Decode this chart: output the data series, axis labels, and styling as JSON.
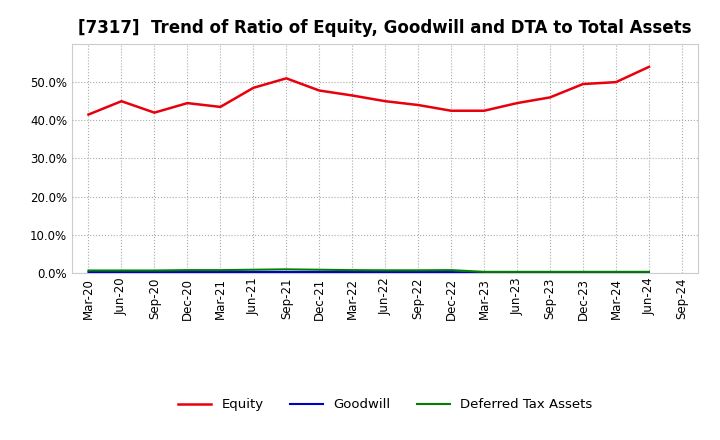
{
  "title": "[7317]  Trend of Ratio of Equity, Goodwill and DTA to Total Assets",
  "x_labels": [
    "Mar-20",
    "Jun-20",
    "Sep-20",
    "Dec-20",
    "Mar-21",
    "Jun-21",
    "Sep-21",
    "Dec-21",
    "Mar-22",
    "Jun-22",
    "Sep-22",
    "Dec-22",
    "Mar-23",
    "Jun-23",
    "Sep-23",
    "Dec-23",
    "Mar-24",
    "Jun-24",
    "Sep-24"
  ],
  "equity": [
    41.5,
    45.0,
    42.0,
    44.5,
    43.5,
    48.5,
    51.0,
    47.8,
    46.5,
    45.0,
    44.0,
    42.5,
    42.5,
    44.5,
    46.0,
    49.5,
    50.0,
    54.0,
    null
  ],
  "goodwill": [
    0.2,
    0.2,
    0.2,
    0.2,
    0.2,
    0.2,
    0.2,
    0.2,
    0.2,
    0.2,
    0.2,
    0.2,
    0.05,
    0.05,
    0.05,
    0.05,
    0.05,
    0.05,
    null
  ],
  "dta": [
    0.6,
    0.6,
    0.6,
    0.7,
    0.7,
    0.8,
    0.9,
    0.8,
    0.7,
    0.65,
    0.65,
    0.7,
    0.25,
    0.25,
    0.25,
    0.25,
    0.25,
    0.25,
    null
  ],
  "equity_color": "#e8000d",
  "goodwill_color": "#0000cc",
  "dta_color": "#008000",
  "ylim": [
    0,
    60
  ],
  "yticks": [
    0,
    10,
    20,
    30,
    40,
    50
  ],
  "background_color": "#ffffff",
  "plot_bg_color": "#ffffff",
  "grid_color": "#aaaaaa",
  "legend_labels": [
    "Equity",
    "Goodwill",
    "Deferred Tax Assets"
  ],
  "title_fontsize": 12,
  "tick_fontsize": 8.5,
  "legend_fontsize": 9.5
}
